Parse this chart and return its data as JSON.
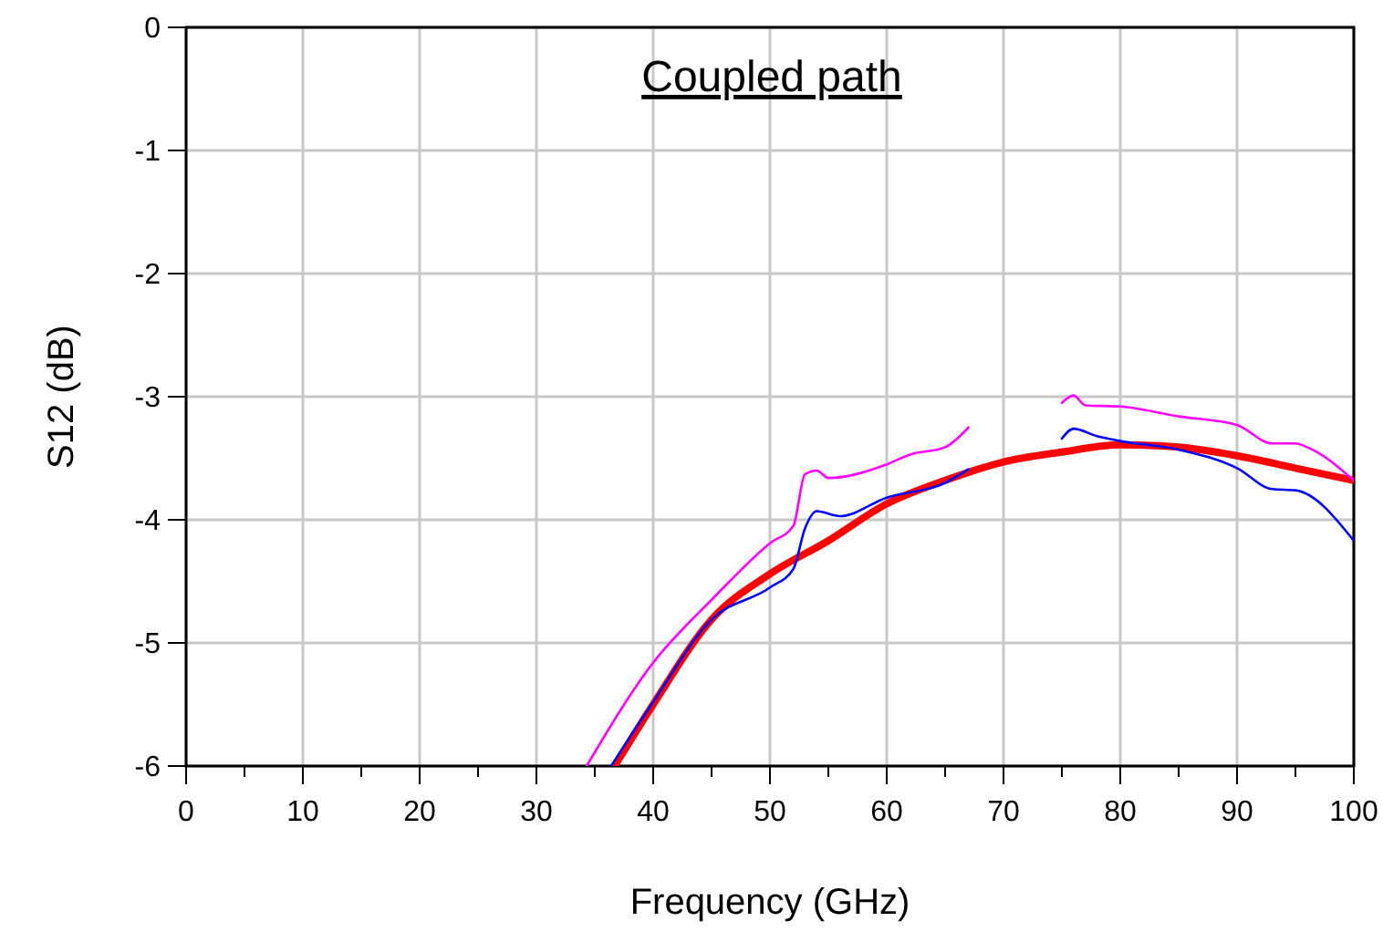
{
  "chart_data": {
    "type": "line",
    "title": "Coupled path",
    "xlabel": "Frequency (GHz)",
    "ylabel": "S12 (dB)",
    "xlim": [
      0,
      100
    ],
    "ylim": [
      -6,
      0
    ],
    "xticks": [
      0,
      {
        "value": 5,
        "label": null
      },
      10,
      {
        "value": 15,
        "label": null
      },
      20,
      {
        "value": 25,
        "label": null
      },
      30,
      {
        "value": 35,
        "label": null
      },
      40,
      {
        "value": 45,
        "label": null
      },
      50,
      {
        "value": 55,
        "label": null
      },
      60,
      {
        "value": 65,
        "label": null
      },
      70,
      {
        "value": 75,
        "label": null
      },
      80,
      {
        "value": 85,
        "label": null
      },
      90,
      {
        "value": 95,
        "label": null
      },
      100
    ],
    "yticks": [
      -6,
      -5,
      -4,
      -3,
      -2,
      -1,
      0
    ],
    "grid": true,
    "series": [
      {
        "color": "#ff00ff",
        "x": [
          34.3,
          40,
          45,
          50,
          52,
          53,
          54,
          55,
          60,
          62,
          65,
          67,
          null,
          75,
          76,
          77,
          80,
          85,
          90,
          93,
          95,
          96,
          100
        ],
        "values": [
          -6,
          -5.16,
          -4.65,
          -4.19,
          -4.05,
          -3.63,
          -3.6,
          -3.66,
          -3.55,
          -3.47,
          -3.41,
          -3.25,
          null,
          -3.05,
          -2.99,
          -3.07,
          -3.08,
          -3.16,
          -3.23,
          -3.38,
          -3.38,
          -3.41,
          -3.68
        ]
      },
      {
        "color": "#0000ff",
        "x": [
          36.4,
          40,
          45,
          50,
          52,
          53,
          54,
          56,
          60,
          65,
          67,
          null,
          75,
          76,
          78,
          80,
          85,
          90,
          93,
          95,
          100
        ],
        "values": [
          -6,
          -5.48,
          -4.81,
          -4.55,
          -4.4,
          -4.07,
          -3.93,
          -3.97,
          -3.82,
          -3.7,
          -3.59,
          null,
          -3.34,
          -3.26,
          -3.32,
          -3.36,
          -3.43,
          -3.58,
          -3.75,
          -3.76,
          -4.17
        ]
      },
      {
        "color": "#ff0000",
        "x": [
          36.7,
          40,
          45,
          50,
          55,
          60,
          65,
          70,
          75,
          80,
          85,
          90,
          95,
          100
        ],
        "values": [
          -6,
          -5.5,
          -4.81,
          -4.44,
          -4.17,
          -3.87,
          -3.68,
          -3.53,
          -3.45,
          -3.39,
          -3.41,
          -3.48,
          -3.58,
          -3.68
        ]
      }
    ]
  }
}
